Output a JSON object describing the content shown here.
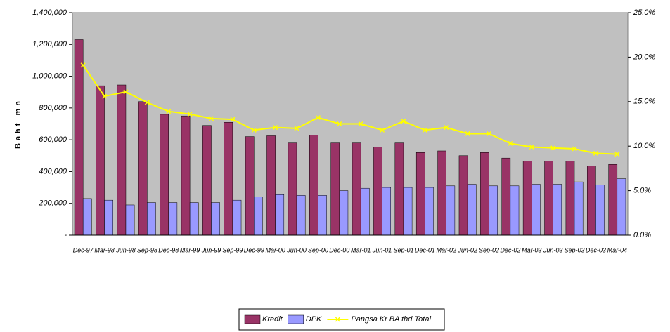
{
  "chart_data": {
    "type": "bar_line",
    "y_label": "Baht mn",
    "categories": [
      "Dec-97",
      "Mar-98",
      "Jun-98",
      "Sep-98",
      "Dec-98",
      "Mar-99",
      "Jun-99",
      "Sep-99",
      "Dec-99",
      "Mar-00",
      "Jun-00",
      "Sep-00",
      "Dec-00",
      "Mar-01",
      "Jun-01",
      "Sep-01",
      "Dec-01",
      "Mar-02",
      "Jun-02",
      "Sep-02",
      "Dec-02",
      "Mar-03",
      "Jun-03",
      "Sep-03",
      "Dec-03",
      "Mar-04"
    ],
    "series": [
      {
        "name": "Kredit",
        "type": "bar",
        "color": "#993366",
        "values": [
          1230000,
          940000,
          945000,
          840000,
          760000,
          750000,
          690000,
          710000,
          620000,
          625000,
          580000,
          630000,
          580000,
          580000,
          555000,
          580000,
          520000,
          530000,
          500000,
          520000,
          485000,
          465000,
          465000,
          465000,
          435000,
          445000
        ]
      },
      {
        "name": "DPK",
        "type": "bar",
        "color": "#9999ff",
        "values": [
          230000,
          220000,
          190000,
          205000,
          205000,
          205000,
          205000,
          220000,
          240000,
          255000,
          250000,
          250000,
          280000,
          295000,
          300000,
          300000,
          300000,
          310000,
          320000,
          310000,
          310000,
          320000,
          320000,
          335000,
          315000,
          355000
        ]
      },
      {
        "name": "Pangsa Kr BA thd Total",
        "type": "line",
        "axis": "y2",
        "color": "#ffff00",
        "values": [
          19.1,
          15.6,
          16.1,
          14.9,
          13.9,
          13.6,
          13.1,
          13.0,
          11.8,
          12.1,
          12.0,
          13.2,
          12.5,
          12.5,
          11.8,
          12.8,
          11.8,
          12.1,
          11.4,
          11.4,
          10.3,
          9.9,
          9.8,
          9.7,
          9.2,
          9.1
        ]
      }
    ],
    "ylim": [
      0,
      1400000
    ],
    "yticks": [
      {
        "value": 0,
        "label": "-"
      },
      {
        "value": 200000,
        "label": "200,000"
      },
      {
        "value": 400000,
        "label": "400,000"
      },
      {
        "value": 600000,
        "label": "600,000"
      },
      {
        "value": 800000,
        "label": "800,000"
      },
      {
        "value": 1000000,
        "label": "1,000,000"
      },
      {
        "value": 1200000,
        "label": "1,200,000"
      },
      {
        "value": 1400000,
        "label": "1,400,000"
      }
    ],
    "y2lim": [
      0,
      25
    ],
    "y2ticks": [
      {
        "value": 0,
        "label": "0.0%"
      },
      {
        "value": 5,
        "label": "5.0%"
      },
      {
        "value": 10,
        "label": "10.0%"
      },
      {
        "value": 15,
        "label": "15.0%"
      },
      {
        "value": 20,
        "label": "20.0%"
      },
      {
        "value": 25,
        "label": "25.0%"
      }
    ],
    "plot_background": "#c0c0c0",
    "legend": "bottom"
  }
}
